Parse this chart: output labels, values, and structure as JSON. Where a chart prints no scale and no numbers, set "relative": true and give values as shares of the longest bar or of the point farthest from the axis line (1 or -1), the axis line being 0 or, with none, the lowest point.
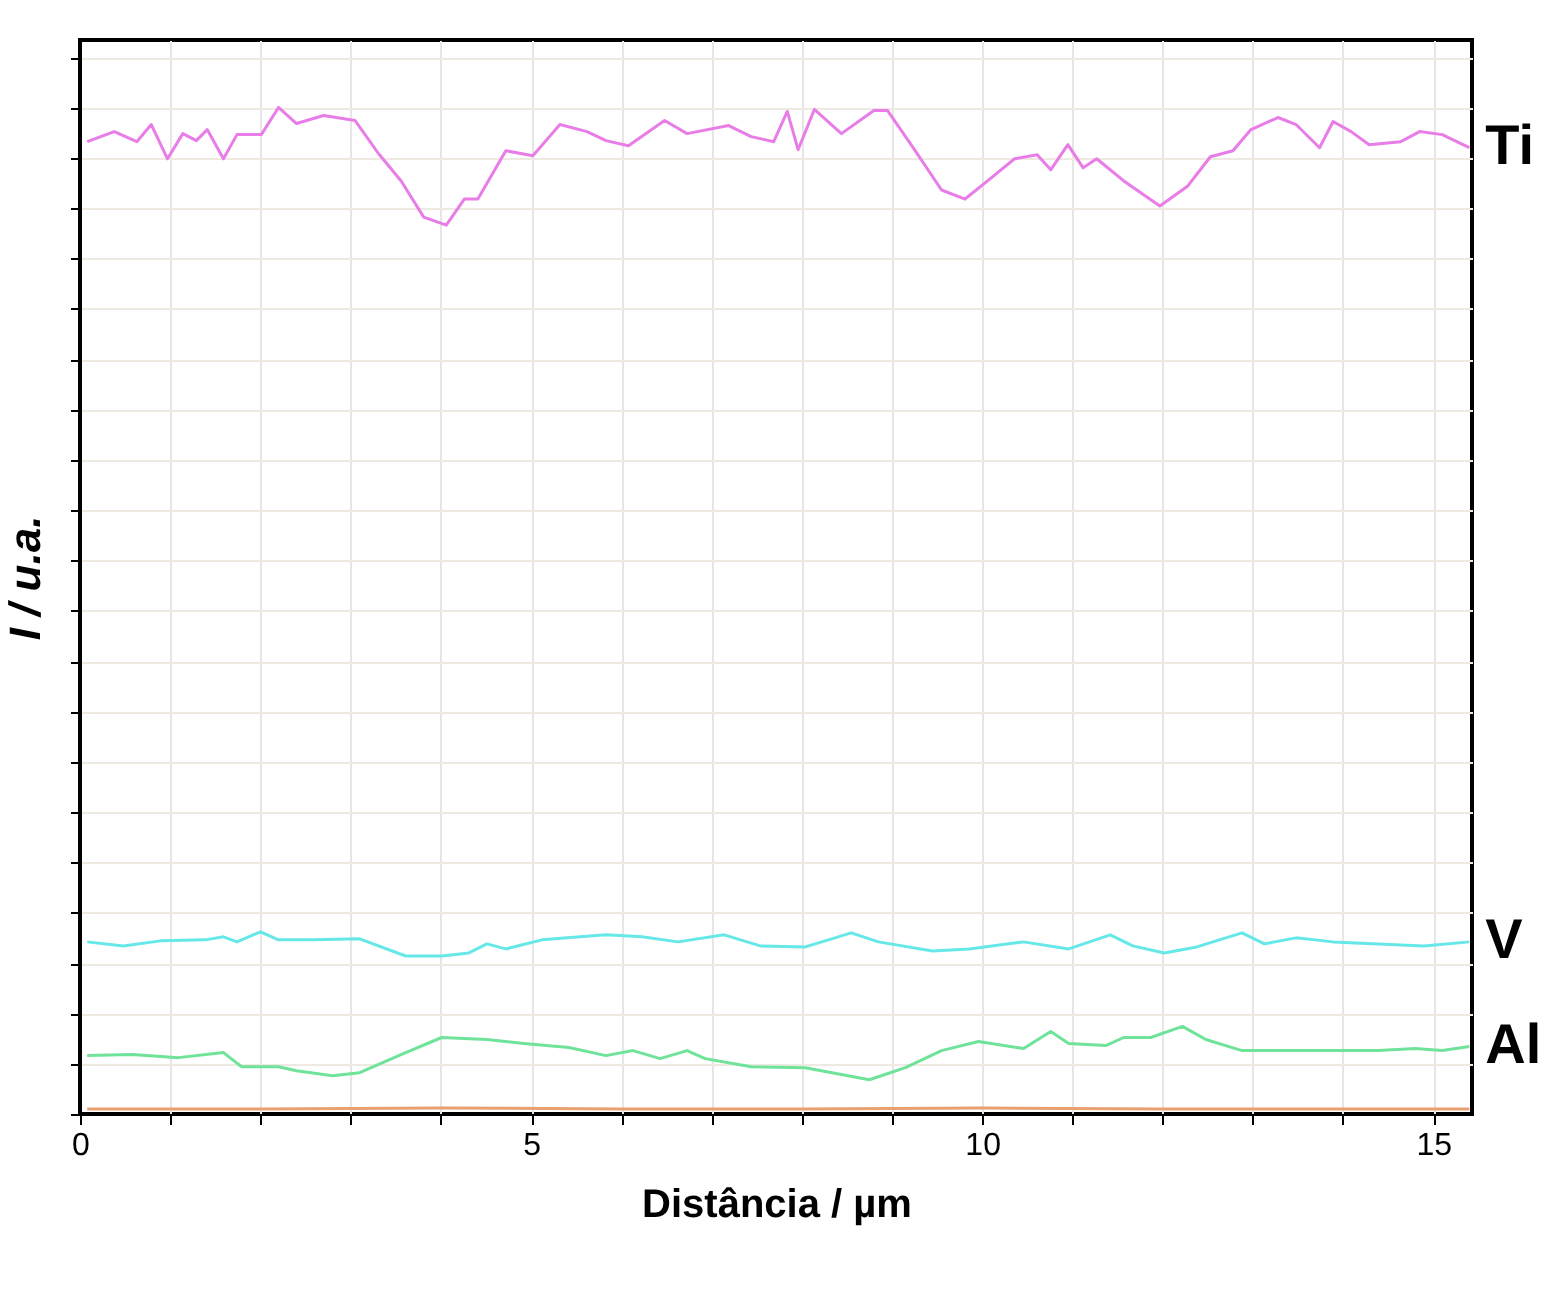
{
  "chart_data": {
    "type": "line",
    "xlabel": "Distância / µm",
    "ylabel": "I / u.a.",
    "relative": true,
    "grid": true,
    "legend": false,
    "xlim": [
      0,
      15.43
    ],
    "xticks": [
      0,
      {
        "value": 1,
        "label": null
      },
      {
        "value": 2,
        "label": null
      },
      {
        "value": 3,
        "label": null
      },
      {
        "value": 4,
        "label": null
      },
      5,
      {
        "value": 6,
        "label": null
      },
      {
        "value": 7,
        "label": null
      },
      {
        "value": 8,
        "label": null
      },
      {
        "value": 9,
        "label": null
      },
      10,
      {
        "value": 11,
        "label": null
      },
      {
        "value": 12,
        "label": null
      },
      {
        "value": 13,
        "label": null
      },
      {
        "value": 14,
        "label": null
      },
      15
    ],
    "series": [
      {
        "name": "Ti",
        "color": "#e87de8",
        "x": [
          0.08,
          0.38,
          0.63,
          0.79,
          0.97,
          1.14,
          1.29,
          1.41,
          1.59,
          1.74,
          2.01,
          2.2,
          2.4,
          2.7,
          3.05,
          3.31,
          3.56,
          3.81,
          4.06,
          4.26,
          4.41,
          4.72,
          5.02,
          5.32,
          5.62,
          5.83,
          6.08,
          6.48,
          6.73,
          7.19,
          7.44,
          7.69,
          7.84,
          7.96,
          8.14,
          8.44,
          8.8,
          8.95,
          9.25,
          9.55,
          9.81,
          10.06,
          10.36,
          10.61,
          10.76,
          10.95,
          11.12,
          11.27,
          11.57,
          11.97,
          12.28,
          12.53,
          12.78,
          12.98,
          13.28,
          13.48,
          13.74,
          13.89,
          14.09,
          14.29,
          14.64,
          14.85,
          15.1,
          15.4
        ],
        "values": [
          0.966,
          0.976,
          0.966,
          0.983,
          0.949,
          0.974,
          0.967,
          0.978,
          0.949,
          0.973,
          0.973,
          1,
          0.984,
          0.992,
          0.987,
          0.954,
          0.927,
          0.891,
          0.883,
          0.909,
          0.909,
          0.957,
          0.952,
          0.983,
          0.976,
          0.967,
          0.962,
          0.987,
          0.974,
          0.982,
          0.971,
          0.966,
          0.996,
          0.958,
          0.998,
          0.974,
          0.997,
          0.997,
          0.958,
          0.918,
          0.909,
          0.927,
          0.949,
          0.953,
          0.938,
          0.963,
          0.94,
          0.949,
          0.927,
          0.902,
          0.922,
          0.951,
          0.957,
          0.978,
          0.99,
          0.983,
          0.96,
          0.986,
          0.976,
          0.963,
          0.966,
          0.976,
          0.973,
          0.96
        ]
      },
      {
        "name": "V",
        "color": "#66e8e8",
        "x": [
          0.08,
          0.48,
          0.89,
          1.39,
          1.59,
          1.74,
          2.0,
          2.2,
          2.6,
          3.1,
          3.61,
          4.01,
          4.31,
          4.51,
          4.72,
          5.12,
          5.83,
          6.23,
          6.63,
          7.14,
          7.54,
          8.04,
          8.55,
          8.85,
          9.45,
          9.86,
          10.46,
          10.96,
          11.42,
          11.67,
          12.02,
          12.38,
          12.88,
          13.13,
          13.48,
          13.89,
          14.39,
          14.9,
          15.4
        ],
        "values": [
          0.171,
          0.167,
          0.172,
          0.173,
          0.176,
          0.171,
          0.181,
          0.173,
          0.173,
          0.174,
          0.157,
          0.157,
          0.16,
          0.169,
          0.164,
          0.173,
          0.178,
          0.176,
          0.171,
          0.178,
          0.167,
          0.166,
          0.18,
          0.171,
          0.162,
          0.164,
          0.171,
          0.164,
          0.178,
          0.167,
          0.16,
          0.166,
          0.18,
          0.169,
          0.175,
          0.171,
          0.169,
          0.167,
          0.171
        ]
      },
      {
        "name": "Al",
        "color": "#6fe39a",
        "x": [
          0.08,
          0.58,
          1.09,
          1.59,
          1.79,
          2.2,
          2.4,
          2.8,
          3.1,
          3.61,
          4.01,
          4.51,
          4.92,
          5.42,
          5.83,
          6.13,
          6.43,
          6.73,
          6.93,
          7.44,
          8.04,
          8.75,
          9.15,
          9.55,
          9.96,
          10.46,
          10.76,
          10.96,
          11.37,
          11.57,
          11.87,
          12.22,
          12.48,
          12.88,
          13.69,
          14.39,
          14.8,
          15.1,
          15.4
        ],
        "values": [
          0.058,
          0.059,
          0.056,
          0.061,
          0.047,
          0.047,
          0.043,
          0.038,
          0.041,
          0.061,
          0.076,
          0.074,
          0.07,
          0.066,
          0.058,
          0.063,
          0.055,
          0.063,
          0.055,
          0.047,
          0.046,
          0.034,
          0.046,
          0.063,
          0.072,
          0.065,
          0.082,
          0.07,
          0.068,
          0.076,
          0.076,
          0.087,
          0.074,
          0.063,
          0.063,
          0.063,
          0.065,
          0.063,
          0.067
        ]
      },
      {
        "color": "#e8a070",
        "x": [
          0.08,
          2,
          4,
          6,
          8,
          10,
          12,
          14,
          15.4
        ],
        "values": [
          0.005,
          0.005,
          0.006,
          0.005,
          0.005,
          0.006,
          0.005,
          0.005,
          0.005
        ]
      }
    ]
  }
}
